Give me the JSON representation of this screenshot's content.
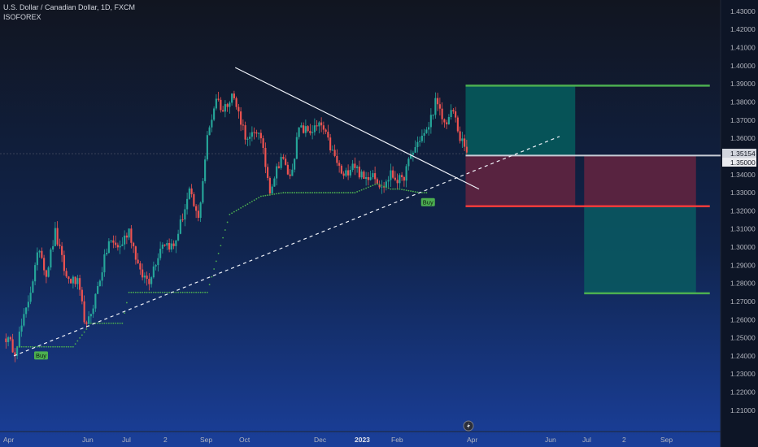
{
  "header": {
    "symbol_title": "U.S. Dollar / Canadian Dollar, 1D, FXCM",
    "indicator_name": "ISOFOREX"
  },
  "chart_data": {
    "type": "candlestick",
    "y_axis": {
      "ticks": [
        "1.43000",
        "1.42000",
        "1.41000",
        "1.40000",
        "1.39000",
        "1.38000",
        "1.37000",
        "1.36000",
        "1.35000",
        "1.34000",
        "1.33000",
        "1.32000",
        "1.31000",
        "1.30000",
        "1.29000",
        "1.28000",
        "1.27000",
        "1.26000",
        "1.25000",
        "1.24000",
        "1.23000",
        "1.22000",
        "1.21000"
      ],
      "range": [
        1.205,
        1.434
      ]
    },
    "x_axis": {
      "ticks": [
        {
          "label": "Apr",
          "bold": false
        },
        {
          "label": "Jun",
          "bold": false
        },
        {
          "label": "Jul",
          "bold": false
        },
        {
          "label": "2",
          "bold": false
        },
        {
          "label": "Sep",
          "bold": false
        },
        {
          "label": "Oct",
          "bold": false
        },
        {
          "label": "Dec",
          "bold": false
        },
        {
          "label": "2023",
          "bold": true
        },
        {
          "label": "Feb",
          "bold": false
        },
        {
          "label": "Apr",
          "bold": false
        },
        {
          "label": "Jun",
          "bold": false
        },
        {
          "label": "Jul",
          "bold": false
        },
        {
          "label": "2",
          "bold": false
        },
        {
          "label": "Sep",
          "bold": false
        }
      ]
    },
    "price_labels": {
      "current": "1.35154",
      "level": "1.35000"
    },
    "anchors": [
      [
        0,
        1.25
      ],
      [
        4,
        1.243
      ],
      [
        9,
        1.265
      ],
      [
        15,
        1.3
      ],
      [
        18,
        1.285
      ],
      [
        22,
        1.308
      ],
      [
        27,
        1.283
      ],
      [
        32,
        1.28
      ],
      [
        36,
        1.255
      ],
      [
        40,
        1.273
      ],
      [
        46,
        1.303
      ],
      [
        51,
        1.3
      ],
      [
        55,
        1.31
      ],
      [
        60,
        1.285
      ],
      [
        64,
        1.282
      ],
      [
        70,
        1.303
      ],
      [
        75,
        1.3
      ],
      [
        82,
        1.33
      ],
      [
        86,
        1.315
      ],
      [
        90,
        1.36
      ],
      [
        94,
        1.383
      ],
      [
        97,
        1.375
      ],
      [
        101,
        1.385
      ],
      [
        105,
        1.37
      ],
      [
        108,
        1.358
      ],
      [
        113,
        1.365
      ],
      [
        118,
        1.332
      ],
      [
        123,
        1.35
      ],
      [
        127,
        1.338
      ],
      [
        131,
        1.365
      ],
      [
        136,
        1.364
      ],
      [
        141,
        1.367
      ],
      [
        146,
        1.352
      ],
      [
        151,
        1.338
      ],
      [
        155,
        1.347
      ],
      [
        160,
        1.337
      ],
      [
        164,
        1.342
      ],
      [
        168,
        1.332
      ],
      [
        172,
        1.34
      ],
      [
        177,
        1.336
      ],
      [
        181,
        1.35
      ],
      [
        185,
        1.36
      ],
      [
        188,
        1.363
      ],
      [
        192,
        1.38
      ],
      [
        196,
        1.368
      ],
      [
        200,
        1.375
      ],
      [
        203,
        1.36
      ],
      [
        206,
        1.352
      ]
    ],
    "stop_line": {
      "label": "Buy",
      "segments": [
        [
          5,
          1.245
        ],
        [
          30,
          1.245
        ],
        [
          38,
          1.258
        ],
        [
          52,
          1.258
        ],
        [
          55,
          1.275
        ],
        [
          90,
          1.275
        ],
        [
          100,
          1.318
        ],
        [
          114,
          1.328
        ],
        [
          124,
          1.33
        ],
        [
          156,
          1.33
        ],
        [
          166,
          1.335
        ],
        [
          172,
          1.332
        ],
        [
          176,
          1.332
        ],
        [
          185,
          1.33
        ],
        [
          189,
          1.33
        ]
      ]
    },
    "trendlines": [
      {
        "style": "solid",
        "from": [
          103,
          1.399
        ],
        "to": [
          212,
          1.332
        ]
      },
      {
        "style": "dashed",
        "from": [
          4,
          1.24
        ],
        "to": [
          248,
          1.361
        ]
      }
    ],
    "position_zones": [
      {
        "kind": "long",
        "from_bar": 206,
        "to_bar": 255,
        "entry": 1.3505,
        "target": 1.389,
        "stop": 1.3225
      },
      {
        "kind": "short",
        "from_bar": 259,
        "to_bar": 309,
        "entry": 1.3505,
        "target": 1.2745,
        "stop": 1.3225
      }
    ],
    "signals": [
      {
        "label": "Buy",
        "bar": 16,
        "price": 1.2425
      },
      {
        "label": "Buy",
        "bar": 189,
        "price": 1.327
      }
    ],
    "colors": {
      "up": "#26a69a",
      "down": "#ef5350",
      "stop_dots": "#4caf50",
      "long_zone": "#06565a",
      "stop_zone": "#5d2440",
      "short_zone": "#0b5560",
      "level_green": "#4caf50",
      "level_red": "#ef3b3b"
    }
  }
}
